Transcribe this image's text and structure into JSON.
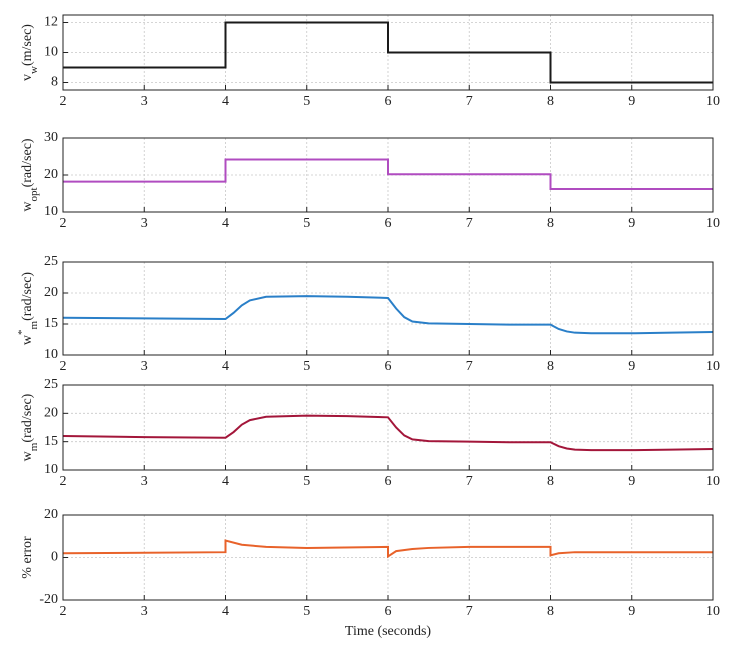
{
  "chart_data": [
    {
      "type": "line",
      "color": "#1a1a1a",
      "grid": true,
      "ylabel": {
        "base": "v",
        "sub": "w",
        "unit": "(m/sec)"
      },
      "x": [
        2,
        4,
        4,
        6,
        6,
        8,
        8,
        10
      ],
      "values": [
        9,
        9,
        12,
        12,
        10,
        10,
        8,
        8
      ],
      "xlim": [
        2,
        10
      ],
      "ylim": [
        7.5,
        12.5
      ],
      "xticks": [
        2,
        3,
        4,
        5,
        6,
        7,
        8,
        9,
        10
      ],
      "yticks": [
        8,
        10,
        12
      ]
    },
    {
      "type": "line",
      "color": "#b04cc0",
      "grid": true,
      "ylabel": {
        "base": "w",
        "sub": "opt",
        "unit": "(rad/sec)"
      },
      "x": [
        2,
        4,
        4,
        6,
        6,
        8,
        8,
        10
      ],
      "values": [
        18.2,
        18.2,
        24.2,
        24.2,
        20.2,
        20.2,
        16.2,
        16.2
      ],
      "xlim": [
        2,
        10
      ],
      "ylim": [
        10,
        30
      ],
      "xticks": [
        2,
        3,
        4,
        5,
        6,
        7,
        8,
        9,
        10
      ],
      "yticks": [
        10,
        20,
        30
      ]
    },
    {
      "type": "line",
      "color": "#2a7fc8",
      "grid": true,
      "ylabel": {
        "base": "w",
        "sup": "*",
        "sub": "m",
        "unit": "(rad/sec)"
      },
      "x": [
        2,
        3,
        4,
        4.1,
        4.2,
        4.3,
        4.5,
        5,
        5.5,
        6,
        6.1,
        6.2,
        6.3,
        6.5,
        7,
        7.5,
        8,
        8.1,
        8.2,
        8.3,
        8.5,
        9,
        9.5,
        10
      ],
      "values": [
        16,
        15.9,
        15.8,
        16.8,
        18,
        18.8,
        19.4,
        19.5,
        19.4,
        19.2,
        17.5,
        16.1,
        15.4,
        15.1,
        15,
        14.9,
        14.9,
        14.2,
        13.8,
        13.6,
        13.5,
        13.5,
        13.6,
        13.7
      ],
      "xlim": [
        2,
        10
      ],
      "ylim": [
        10,
        25
      ],
      "xticks": [
        2,
        3,
        4,
        5,
        6,
        7,
        8,
        9,
        10
      ],
      "yticks": [
        10,
        15,
        20,
        25
      ]
    },
    {
      "type": "line",
      "color": "#a3163a",
      "grid": true,
      "ylabel": {
        "base": "w",
        "sub": "m",
        "unit": "(rad/sec)"
      },
      "x": [
        2,
        3,
        4,
        4.1,
        4.2,
        4.3,
        4.5,
        5,
        5.5,
        6,
        6.1,
        6.2,
        6.3,
        6.5,
        7,
        7.5,
        8,
        8.1,
        8.2,
        8.3,
        8.5,
        9,
        9.5,
        10
      ],
      "values": [
        16,
        15.8,
        15.7,
        16.7,
        18,
        18.8,
        19.4,
        19.6,
        19.5,
        19.3,
        17.5,
        16.1,
        15.4,
        15.1,
        15,
        14.9,
        14.9,
        14.2,
        13.8,
        13.6,
        13.5,
        13.5,
        13.6,
        13.7
      ],
      "xlim": [
        2,
        10
      ],
      "ylim": [
        10,
        25
      ],
      "xticks": [
        2,
        3,
        4,
        5,
        6,
        7,
        8,
        9,
        10
      ],
      "yticks": [
        10,
        15,
        20,
        25
      ]
    },
    {
      "type": "line",
      "color": "#e8622a",
      "grid": true,
      "ylabel": "% error",
      "xlabel": "Time (seconds)",
      "x": [
        2,
        4,
        4,
        4.2,
        4.5,
        5,
        6,
        6,
        6.1,
        6.3,
        6.5,
        7,
        8,
        8,
        8.1,
        8.3,
        9,
        10
      ],
      "values": [
        2,
        2.5,
        8,
        6,
        5,
        4.5,
        5,
        0.5,
        3,
        4,
        4.5,
        5,
        5,
        1,
        2,
        2.5,
        2.5,
        2.5
      ],
      "xlim": [
        2,
        10
      ],
      "ylim": [
        -20,
        20
      ],
      "xticks": [
        2,
        3,
        4,
        5,
        6,
        7,
        8,
        9,
        10
      ],
      "yticks": [
        -20,
        0,
        20
      ]
    }
  ]
}
